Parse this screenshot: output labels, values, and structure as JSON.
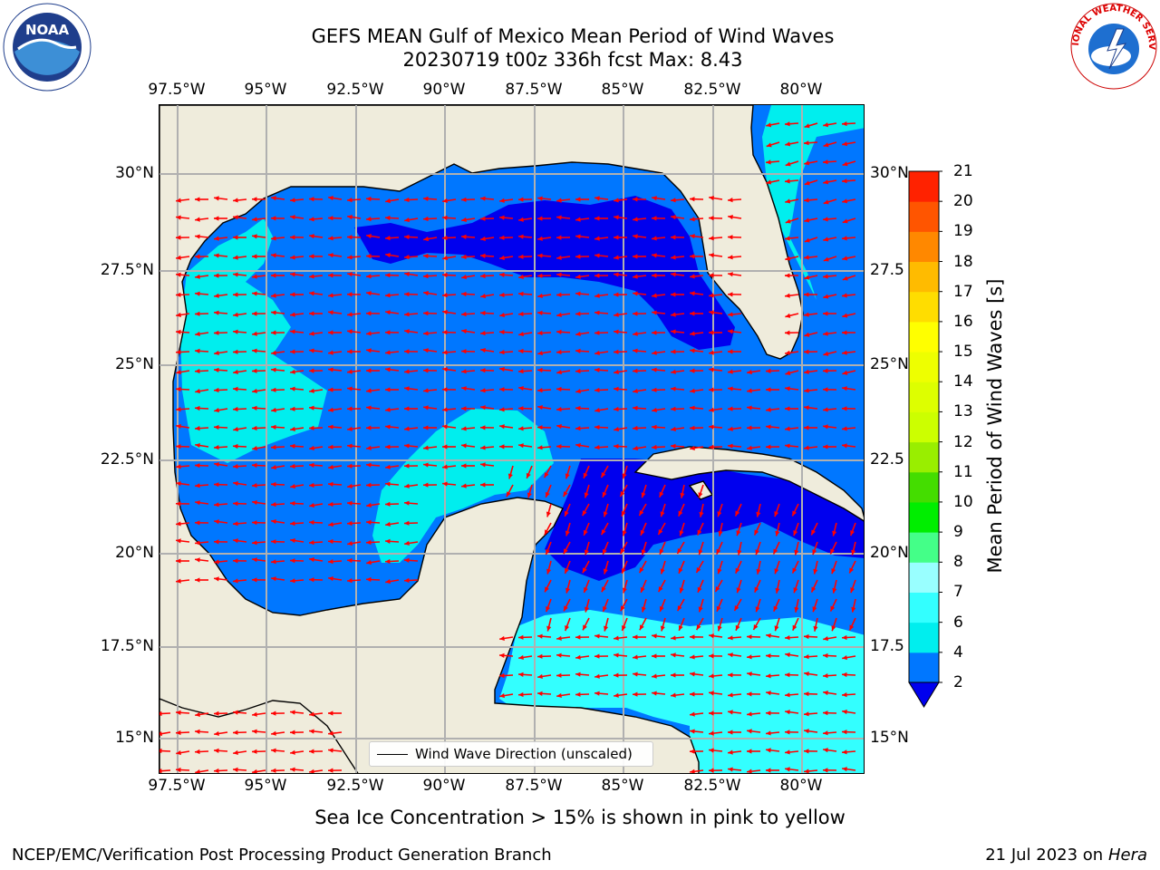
{
  "title": {
    "line1": "GEFS MEAN Gulf of Mexico Mean Period of Wind Waves",
    "line2": "20230719 t00z 336h fcst   Max: 8.43"
  },
  "axes": {
    "lon_ticks": [
      "97.5°W",
      "95°W",
      "92.5°W",
      "90°W",
      "87.5°W",
      "85°W",
      "82.5°W",
      "80°W"
    ],
    "lat_ticks_left": [
      "30°N",
      "27.5°N",
      "25°N",
      "22.5°N",
      "20°N",
      "17.5°N",
      "15°N"
    ],
    "lat_ticks_right": [
      "30°N",
      "27.5",
      "25°N",
      "22.5",
      "20°N",
      "17.5",
      "15°N"
    ]
  },
  "map": {
    "lon_range": [
      -98,
      -78
    ],
    "lat_range": [
      14,
      31.6
    ],
    "land_color": "#efecdc",
    "ocean_levels": {
      "dark_blue": "#0000ee",
      "mid_blue": "#0077ff",
      "cyan": "#00eeee",
      "light_cyan": "#33ffff"
    },
    "arrow_color": "#ff0000"
  },
  "legend": {
    "wind_direction": "Wind Wave Direction (unscaled)"
  },
  "colorbar": {
    "label": "Mean Period of Wind Waves [s]",
    "tick_labels": [
      "2",
      "4",
      "6",
      "7",
      "8",
      "9",
      "10",
      "11",
      "12",
      "13",
      "14",
      "15",
      "16",
      "17",
      "18",
      "19",
      "20",
      "21"
    ],
    "colors": [
      "#0077ff",
      "#00eeee",
      "#33ffff",
      "#99ffff",
      "#44ff88",
      "#00ee00",
      "#44dd00",
      "#99ee00",
      "#ccff00",
      "#ddff00",
      "#eeff00",
      "#ffff00",
      "#ffdd00",
      "#ffbb00",
      "#ff8800",
      "#ff5500",
      "#ff2200"
    ],
    "under_color": "#0000ee"
  },
  "ice_note": "Sea Ice Concentration > 15% is shown in pink to yellow",
  "footer": {
    "left": "NCEP/EMC/Verification Post Processing Product Generation Branch",
    "right_date": "21 Jul 2023 on ",
    "right_host": "Hera"
  },
  "logos": {
    "left": "NOAA",
    "right": "NATIONAL WEATHER SERVICE"
  }
}
